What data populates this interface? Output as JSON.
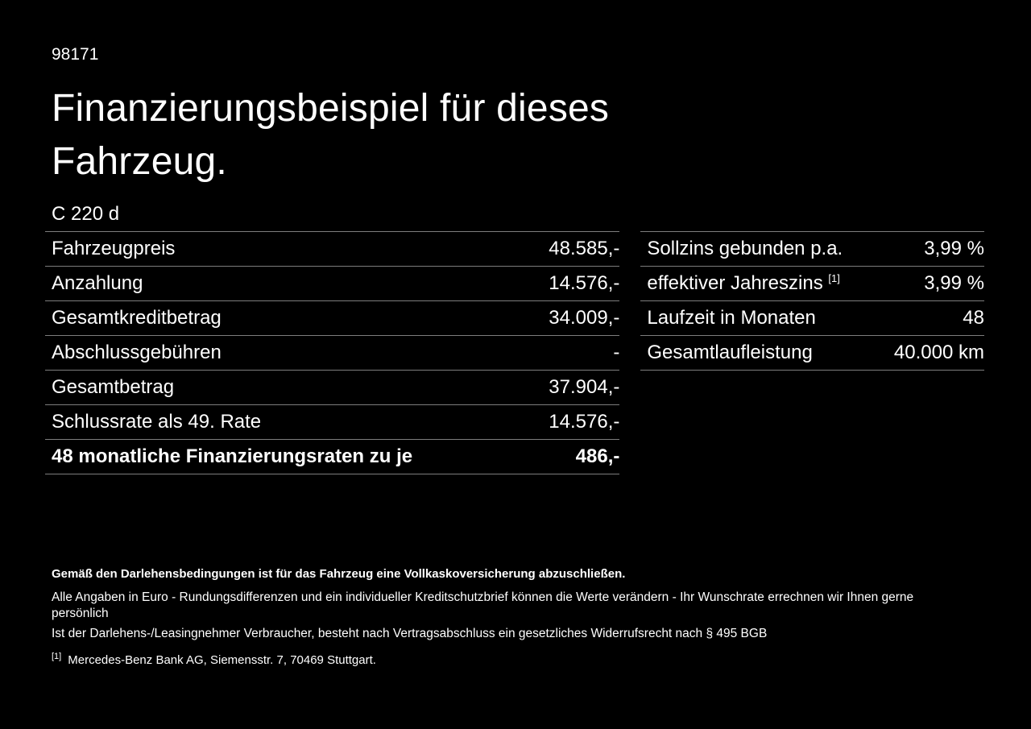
{
  "page": {
    "id": "98171",
    "title_line1": "Finanzierungsbeispiel für dieses",
    "title_line2": "Fahrzeug.",
    "model": "C 220 d"
  },
  "left_table": {
    "rows": [
      {
        "label": "Fahrzeugpreis",
        "value": "48.585,-"
      },
      {
        "label": "Anzahlung",
        "value": "14.576,-"
      },
      {
        "label": "Gesamtkreditbetrag",
        "value": "34.009,-"
      },
      {
        "label": "Abschlussgebühren",
        "value": "-"
      },
      {
        "label": "Gesamtbetrag",
        "value": "37.904,-"
      },
      {
        "label": "Schlussrate als 49. Rate",
        "value": "14.576,-"
      },
      {
        "label": "48 monatliche Finanzierungsraten zu je",
        "value": "486,-"
      }
    ]
  },
  "right_table": {
    "rows": [
      {
        "label": "Sollzins gebunden p.a.",
        "sup": "",
        "value": "3,99 %"
      },
      {
        "label": "effektiver Jahreszins",
        "sup": "[1]",
        "value": "3,99 %"
      },
      {
        "label": "Laufzeit in Monaten",
        "sup": "",
        "value": "48"
      },
      {
        "label": "Gesamtlaufleistung",
        "sup": "",
        "value": "40.000 km"
      }
    ]
  },
  "footer": {
    "bold_note": "Gemäß den Darlehensbedingungen ist für das Fahrzeug eine Vollkaskoversicherung abzuschließen.",
    "line2": "Alle Angaben in Euro - Rundungsdifferenzen und ein individueller Kreditschutzbrief können die Werte verändern - Ihr Wunschrate errechnen wir Ihnen gerne persönlich",
    "line3": "Ist der Darlehens-/Leasingnehmer Verbraucher, besteht nach Vertragsabschluss ein gesetzliches Widerrufsrecht nach § 495 BGB",
    "footnote_marker": "[1]",
    "footnote_text": "Mercedes-Benz Bank AG, Siemensstr. 7, 70469 Stuttgart."
  },
  "colors": {
    "background": "#000000",
    "text": "#ffffff",
    "rule_line": "#7d7d7d"
  }
}
